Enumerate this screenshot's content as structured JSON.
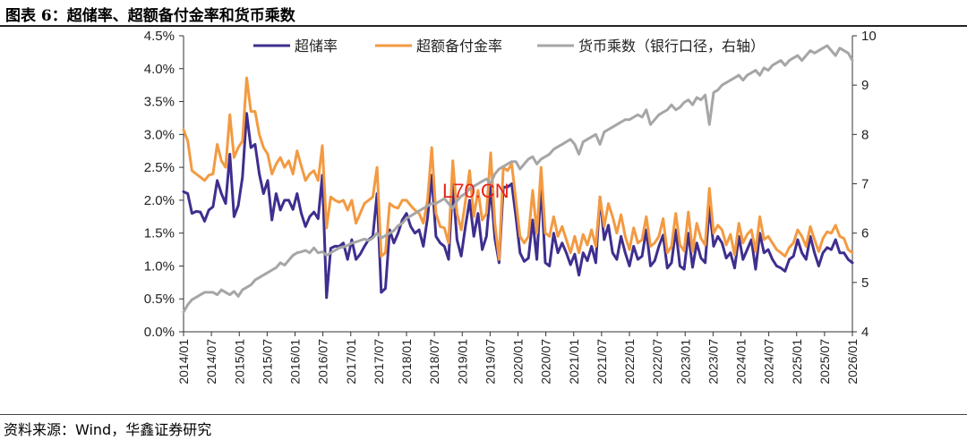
{
  "header": {
    "title": "图表 6：超储率、超额备付金率和货币乘数"
  },
  "footer": {
    "source": "资料来源：Wind，华鑫证券研究"
  },
  "watermark": {
    "text": "L70.CN"
  },
  "chart_data": {
    "type": "line",
    "title": "图表 6：超储率、超额备付金率和货币乘数",
    "x_ticks": [
      "2014/01",
      "2014/07",
      "2015/01",
      "2015/07",
      "2016/01",
      "2016/07",
      "2017/01",
      "2017/07",
      "2018/01",
      "2018/07",
      "2019/01",
      "2019/07",
      "2020/01",
      "2020/07",
      "2021/01",
      "2021/07",
      "2022/01",
      "2022/07",
      "2023/01",
      "2023/07",
      "2024/01",
      "2024/07",
      "2025/01",
      "2025/07",
      "2026/01"
    ],
    "x_range": [
      "2014/01",
      "2026/01"
    ],
    "y_left": {
      "min": 0,
      "max": 4.5,
      "step": 0.5,
      "ticks": [
        "0.0%",
        "0.5%",
        "1.0%",
        "1.5%",
        "2.0%",
        "2.5%",
        "3.0%",
        "3.5%",
        "4.0%",
        "4.5%"
      ]
    },
    "y_right": {
      "min": 4,
      "max": 10,
      "step": 1,
      "ticks": [
        "4",
        "5",
        "6",
        "7",
        "8",
        "9",
        "10"
      ]
    },
    "legend_position": "top",
    "colors": {
      "excess_reserve": "#3f2e8e",
      "excess_provision": "#f39a42",
      "money_multiplier": "#a6a6a6"
    },
    "series": [
      {
        "name": "超储率",
        "axis": "left",
        "color": "#3f2e8e",
        "values": [
          2.13,
          2.1,
          1.8,
          1.83,
          1.82,
          1.68,
          1.85,
          1.9,
          2.3,
          2.1,
          1.95,
          2.7,
          1.75,
          1.92,
          2.35,
          3.32,
          2.8,
          2.85,
          2.4,
          2.1,
          2.3,
          1.7,
          2.1,
          1.85,
          2.0,
          2.0,
          1.86,
          2.1,
          1.8,
          1.6,
          1.75,
          1.82,
          1.72,
          2.38,
          0.52,
          1.27,
          1.3,
          1.3,
          1.35,
          1.1,
          1.4,
          1.1,
          1.18,
          1.3,
          1.4,
          1.45,
          2.1,
          0.6,
          0.66,
          1.55,
          1.35,
          1.5,
          1.7,
          1.8,
          1.6,
          1.5,
          1.55,
          1.3,
          1.73,
          2.38,
          1.45,
          1.35,
          1.3,
          1.1,
          2.25,
          1.4,
          1.15,
          1.6,
          2.0,
          1.45,
          1.8,
          1.25,
          1.45,
          2.2,
          1.42,
          1.05,
          2.2,
          2.2,
          2.25,
          1.75,
          1.2,
          1.07,
          1.12,
          1.7,
          1.1,
          2.24,
          1.05,
          1.0,
          1.5,
          1.2,
          1.35,
          1.2,
          1.02,
          1.18,
          0.86,
          1.2,
          1.08,
          1.3,
          1.05,
          2.05,
          1.4,
          1.62,
          1.2,
          1.1,
          1.45,
          1.2,
          1.0,
          1.3,
          1.1,
          1.15,
          1.55,
          1.0,
          1.08,
          1.3,
          1.47,
          0.97,
          1.05,
          1.55,
          1.0,
          0.95,
          1.5,
          0.98,
          1.35,
          1.12,
          1.05,
          1.9,
          1.3,
          1.45,
          1.35,
          1.12,
          1.2,
          0.97,
          1.45,
          1.1,
          1.25,
          1.4,
          0.95,
          1.5,
          1.2,
          1.25,
          1.1,
          1.0,
          0.97,
          0.92,
          1.1,
          1.15,
          1.4,
          1.2,
          1.1,
          1.45,
          1.2,
          1.0,
          1.2,
          1.28,
          1.25,
          1.4,
          1.2,
          1.2,
          1.1,
          1.05
        ]
      },
      {
        "name": "超额备付金率",
        "axis": "left",
        "color": "#f39a42",
        "values": [
          3.07,
          2.9,
          2.45,
          2.4,
          2.35,
          2.3,
          2.38,
          2.4,
          2.85,
          2.6,
          2.5,
          3.3,
          2.65,
          2.8,
          2.9,
          3.86,
          3.35,
          3.35,
          3.0,
          2.8,
          2.7,
          2.4,
          2.55,
          2.65,
          2.5,
          2.6,
          2.4,
          2.75,
          2.52,
          2.3,
          2.4,
          2.45,
          2.3,
          2.83,
          1.58,
          2.05,
          2.0,
          1.97,
          2.0,
          1.85,
          2.0,
          1.65,
          1.8,
          1.95,
          2.0,
          2.05,
          2.5,
          1.15,
          1.2,
          1.95,
          1.9,
          1.88,
          2.0,
          2.0,
          1.92,
          1.85,
          1.8,
          1.65,
          2.0,
          2.8,
          1.8,
          1.6,
          1.58,
          1.35,
          2.6,
          1.8,
          1.55,
          1.98,
          2.45,
          1.75,
          2.15,
          1.7,
          1.8,
          2.72,
          1.65,
          1.1,
          2.5,
          2.45,
          2.55,
          2.0,
          1.45,
          1.35,
          1.45,
          2.15,
          1.5,
          2.5,
          1.5,
          1.45,
          1.75,
          1.45,
          1.6,
          1.4,
          1.2,
          1.45,
          1.2,
          1.48,
          1.32,
          1.55,
          1.3,
          2.05,
          1.6,
          1.95,
          1.75,
          1.5,
          1.78,
          1.45,
          1.25,
          1.58,
          1.35,
          1.4,
          1.75,
          1.3,
          1.35,
          1.45,
          1.72,
          1.2,
          1.3,
          1.8,
          1.32,
          1.23,
          1.82,
          1.22,
          1.65,
          1.42,
          1.32,
          2.18,
          1.5,
          1.62,
          1.55,
          1.32,
          1.48,
          1.17,
          1.65,
          1.35,
          1.48,
          1.55,
          1.22,
          1.75,
          1.4,
          1.45,
          1.35,
          1.25,
          1.2,
          1.15,
          1.28,
          1.35,
          1.55,
          1.45,
          1.3,
          1.6,
          1.4,
          1.22,
          1.42,
          1.52,
          1.5,
          1.62,
          1.45,
          1.42,
          1.25,
          1.2
        ]
      },
      {
        "name": "货币乘数（银行口径，右轴）",
        "axis": "right",
        "color": "#a6a6a6",
        "values": [
          4.4,
          4.55,
          4.65,
          4.7,
          4.75,
          4.8,
          4.8,
          4.8,
          4.75,
          4.85,
          4.8,
          4.75,
          4.82,
          4.72,
          4.85,
          4.9,
          4.95,
          5.05,
          5.1,
          5.15,
          5.2,
          5.25,
          5.3,
          5.4,
          5.35,
          5.45,
          5.55,
          5.6,
          5.62,
          5.65,
          5.6,
          5.7,
          5.6,
          5.62,
          5.55,
          5.6,
          5.65,
          5.7,
          5.72,
          5.75,
          5.8,
          5.82,
          5.85,
          5.88,
          5.85,
          5.9,
          6.0,
          5.9,
          5.95,
          6.0,
          6.05,
          6.15,
          6.2,
          6.3,
          6.35,
          6.4,
          6.45,
          6.5,
          6.55,
          6.6,
          6.6,
          6.65,
          6.7,
          6.6,
          6.5,
          6.65,
          6.75,
          6.8,
          6.9,
          6.95,
          7.0,
          7.05,
          7.1,
          7.0,
          7.2,
          7.3,
          7.35,
          7.4,
          7.45,
          7.45,
          7.3,
          7.4,
          7.5,
          7.55,
          7.4,
          7.5,
          7.55,
          7.6,
          7.7,
          7.75,
          7.8,
          7.85,
          7.9,
          7.8,
          7.6,
          7.85,
          7.9,
          7.95,
          8.0,
          7.8,
          8.05,
          8.1,
          8.15,
          8.2,
          8.25,
          8.3,
          8.3,
          8.35,
          8.4,
          8.35,
          8.5,
          8.2,
          8.3,
          8.4,
          8.45,
          8.5,
          8.6,
          8.5,
          8.55,
          8.65,
          8.7,
          8.6,
          8.75,
          8.7,
          8.8,
          8.2,
          8.85,
          8.9,
          9.0,
          9.05,
          9.1,
          9.15,
          9.2,
          9.1,
          9.2,
          9.25,
          9.3,
          9.2,
          9.35,
          9.3,
          9.4,
          9.45,
          9.5,
          9.4,
          9.5,
          9.55,
          9.6,
          9.5,
          9.6,
          9.7,
          9.65,
          9.7,
          9.75,
          9.8,
          9.7,
          9.6,
          9.75,
          9.7,
          9.65,
          9.5
        ]
      }
    ]
  }
}
